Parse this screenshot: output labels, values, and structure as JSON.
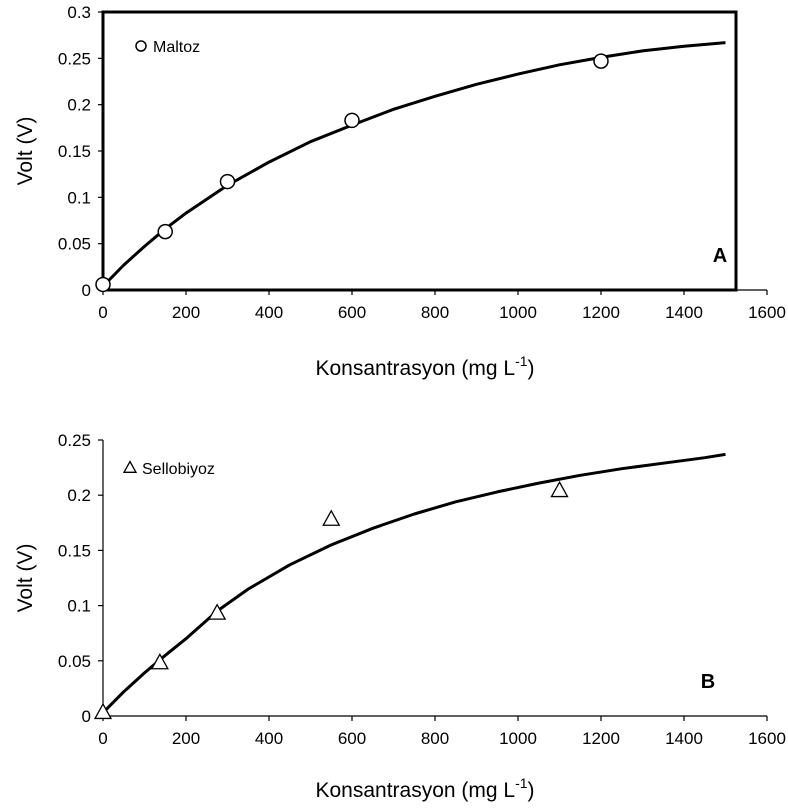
{
  "chart_data": [
    {
      "type": "scatter",
      "panel_label": "A",
      "xlabel": "Konsantrasyon (mg L",
      "xlabel_superscript": "-1",
      "xlabel_suffix": ")",
      "ylabel": "Volt (V)",
      "xlim": [
        0,
        1600
      ],
      "ylim": [
        0,
        0.3
      ],
      "x_ticks": [
        "0",
        "200",
        "400",
        "600",
        "800",
        "1000",
        "1200",
        "1400",
        "1600"
      ],
      "y_ticks": [
        "0",
        "0.05",
        "0.1",
        "0.15",
        "0.2",
        "0.25",
        "0.3"
      ],
      "legend": "top-left",
      "grid": false,
      "marker": "circle",
      "series": [
        {
          "name": "Maltoz",
          "x": [
            0,
            150,
            300,
            600,
            1200
          ],
          "y": [
            0.006,
            0.063,
            0.117,
            0.183,
            0.247
          ]
        }
      ],
      "fit_curve": {
        "x": [
          0,
          50,
          100,
          150,
          200,
          300,
          400,
          500,
          600,
          700,
          800,
          900,
          1000,
          1100,
          1200,
          1300,
          1400,
          1500
        ],
        "y": [
          0.004,
          0.027,
          0.047,
          0.066,
          0.083,
          0.113,
          0.138,
          0.16,
          0.178,
          0.195,
          0.209,
          0.222,
          0.233,
          0.243,
          0.251,
          0.258,
          0.263,
          0.267
        ]
      }
    },
    {
      "type": "scatter",
      "panel_label": "B",
      "xlabel": "Konsantrasyon (mg L",
      "xlabel_superscript": "-1",
      "xlabel_suffix": ")",
      "ylabel": "Volt (V)",
      "xlim": [
        0,
        1600
      ],
      "ylim": [
        0,
        0.25
      ],
      "x_ticks": [
        "0",
        "200",
        "400",
        "600",
        "800",
        "1000",
        "1200",
        "1400",
        "1600"
      ],
      "y_ticks": [
        "0",
        "0.05",
        "0.1",
        "0.15",
        "0.2",
        "0.25"
      ],
      "legend": "top-left",
      "grid": false,
      "marker": "triangle",
      "series": [
        {
          "name": "Sellobiyoz",
          "x": [
            0,
            137,
            275,
            550,
            1100
          ],
          "y": [
            0.003,
            0.048,
            0.093,
            0.178,
            0.204
          ]
        }
      ],
      "fit_curve": {
        "x": [
          0,
          50,
          100,
          150,
          200,
          275,
          350,
          450,
          550,
          650,
          750,
          850,
          950,
          1050,
          1150,
          1250,
          1350,
          1450,
          1500
        ],
        "y": [
          0.003,
          0.022,
          0.039,
          0.055,
          0.07,
          0.095,
          0.115,
          0.137,
          0.155,
          0.17,
          0.183,
          0.194,
          0.203,
          0.211,
          0.218,
          0.224,
          0.229,
          0.234,
          0.237
        ]
      }
    }
  ]
}
